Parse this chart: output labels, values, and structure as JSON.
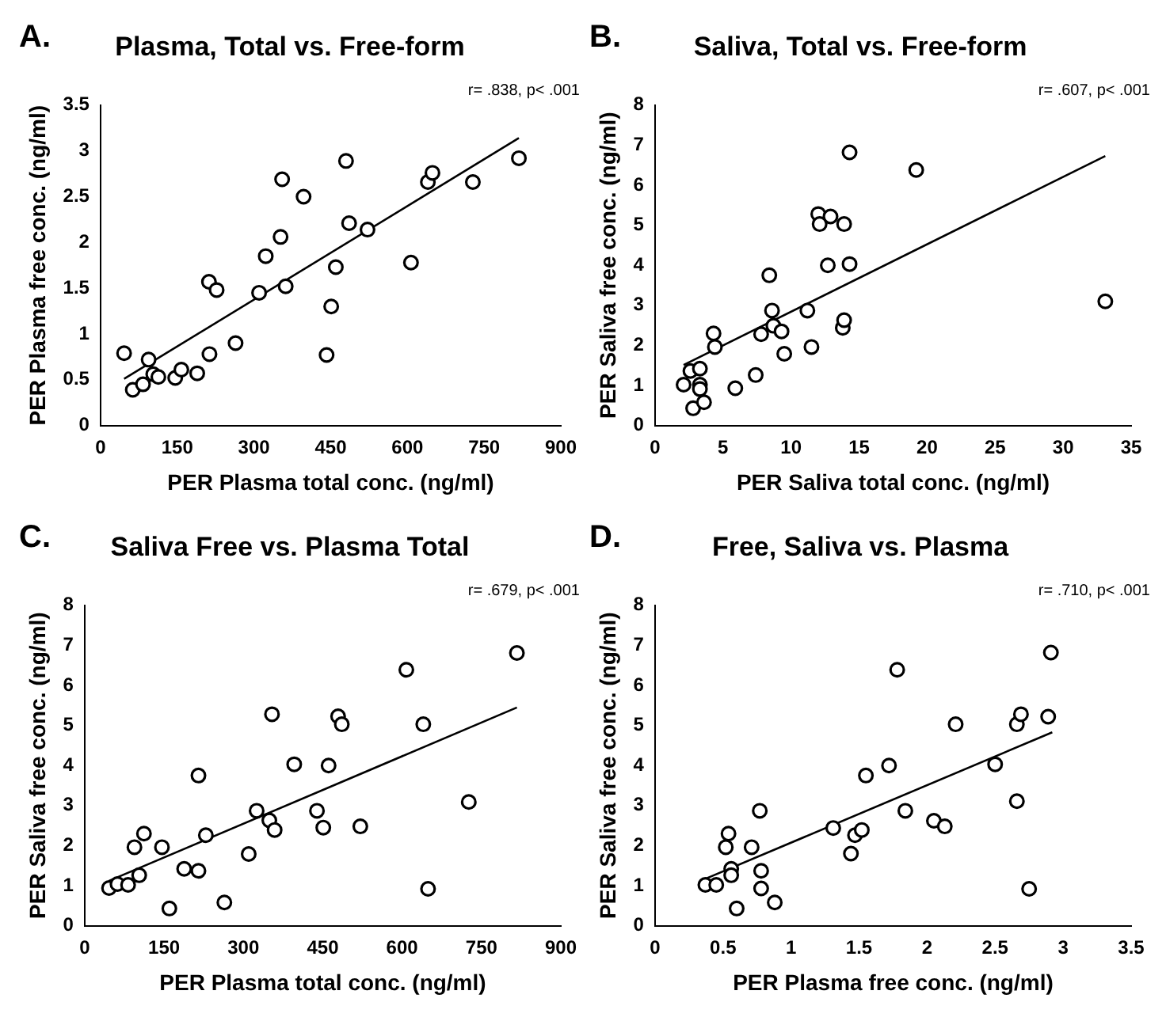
{
  "chart_data": [
    {
      "type": "scatter",
      "title": "Plasma, Total vs. Free-form",
      "xlabel": "PER Plasma total conc. (ng/ml)",
      "ylabel": "PER Plasma free conc. (ng/ml)",
      "annotations": [
        "A.",
        "r= .838, p< .001"
      ],
      "xlim": [
        0,
        900
      ],
      "xticks": [
        0,
        150,
        300,
        450,
        600,
        750,
        900
      ],
      "ylim": [
        0,
        3.5
      ],
      "yticks": [
        0,
        0.5,
        1,
        1.5,
        2,
        2.5,
        3,
        3.5
      ],
      "grid": false,
      "legend": false,
      "series": [
        {
          "type": "scatter",
          "marker": "circle",
          "color": "#000000",
          "x": [
            46,
            63,
            83,
            94,
            103,
            113,
            146,
            158,
            189,
            213,
            212,
            227,
            264,
            310,
            323,
            352,
            355,
            362,
            397,
            442,
            451,
            460,
            480,
            486,
            522,
            607,
            640,
            649,
            728,
            818
          ],
          "values": [
            0.79,
            0.39,
            0.45,
            0.72,
            0.56,
            0.53,
            0.52,
            0.61,
            0.57,
            0.78,
            1.57,
            1.48,
            0.9,
            1.45,
            1.85,
            2.06,
            2.69,
            1.52,
            2.5,
            0.77,
            1.3,
            1.73,
            2.89,
            2.21,
            2.14,
            1.78,
            2.66,
            2.76,
            2.66,
            2.92
          ]
        },
        {
          "type": "line",
          "marker": "none",
          "color": "#000000",
          "x": [
            46,
            818
          ],
          "values": [
            0.51,
            3.14
          ]
        }
      ]
    },
    {
      "type": "scatter",
      "title": "Saliva, Total vs. Free-form",
      "xlabel": "PER Saliva total conc. (ng/ml)",
      "ylabel": "PER Saliva free conc. (ng/ml)",
      "annotations": [
        "B.",
        "r= .607, p< .001"
      ],
      "xlim": [
        0,
        35
      ],
      "xticks": [
        0,
        5,
        10,
        15,
        20,
        25,
        30,
        35
      ],
      "ylim": [
        0,
        8
      ],
      "yticks": [
        0,
        1,
        2,
        3,
        4,
        5,
        6,
        7,
        8
      ],
      "grid": false,
      "legend": false,
      "series": [
        {
          "type": "scatter",
          "marker": "circle",
          "color": "#000000",
          "x": [
            2.1,
            2.8,
            2.6,
            3.3,
            3.3,
            3.3,
            3.6,
            4.3,
            4.4,
            5.9,
            7.4,
            7.8,
            8.4,
            8.6,
            8.7,
            9.3,
            9.5,
            11.2,
            11.5,
            12.0,
            12.1,
            12.9,
            12.7,
            13.8,
            13.9,
            13.9,
            14.3,
            14.3,
            19.2,
            33.1
          ],
          "values": [
            1.02,
            0.43,
            1.36,
            1.42,
            1.02,
            0.91,
            0.58,
            2.3,
            1.96,
            0.93,
            1.26,
            2.28,
            3.75,
            2.87,
            2.49,
            2.35,
            1.79,
            2.87,
            1.96,
            5.28,
            5.03,
            5.22,
            4.0,
            2.44,
            2.63,
            5.03,
            4.03,
            6.82,
            6.38,
            3.1
          ]
        },
        {
          "type": "line",
          "marker": "none",
          "color": "#000000",
          "x": [
            2.1,
            33.1
          ],
          "values": [
            1.51,
            6.73
          ]
        }
      ]
    },
    {
      "type": "scatter",
      "title": "Saliva Free vs. Plasma Total",
      "xlabel": "PER Plasma total conc. (ng/ml)",
      "ylabel": "PER Saliva free conc. (ng/ml)",
      "annotations": [
        "C.",
        "r= .679, p< .001"
      ],
      "xlim": [
        0,
        900
      ],
      "xticks": [
        0,
        150,
        300,
        450,
        600,
        750,
        900
      ],
      "ylim": [
        0,
        8
      ],
      "yticks": [
        0,
        1,
        2,
        3,
        4,
        5,
        6,
        7,
        8
      ],
      "grid": false,
      "legend": false,
      "series": [
        {
          "type": "scatter",
          "marker": "circle",
          "color": "#000000",
          "x": [
            46,
            62,
            82,
            103,
            94,
            112,
            146,
            160,
            188,
            215,
            215,
            229,
            264,
            310,
            325,
            349,
            359,
            354,
            396,
            439,
            451,
            461,
            479,
            486,
            521,
            608,
            640,
            649,
            726,
            817
          ],
          "values": [
            0.94,
            1.04,
            1.02,
            1.26,
            1.96,
            2.3,
            1.96,
            0.43,
            1.42,
            1.37,
            3.75,
            2.26,
            0.58,
            1.79,
            2.87,
            2.63,
            2.39,
            5.28,
            4.03,
            2.87,
            2.45,
            4.0,
            5.23,
            5.03,
            2.48,
            6.39,
            5.03,
            0.92,
            3.09,
            6.81
          ]
        },
        {
          "type": "line",
          "marker": "none",
          "color": "#000000",
          "x": [
            46,
            817
          ],
          "values": [
            1.12,
            5.45
          ]
        }
      ]
    },
    {
      "type": "scatter",
      "title": "Free, Saliva vs. Plasma",
      "xlabel": "PER Plasma free conc. (ng/ml)",
      "ylabel": "PER Saliva free conc. (ng/ml)",
      "annotations": [
        "D.",
        "r= .710, p< .001"
      ],
      "xlim": [
        0,
        3.5
      ],
      "xticks": [
        0,
        0.5,
        1,
        1.5,
        2,
        2.5,
        3,
        3.5
      ],
      "ylim": [
        0,
        8
      ],
      "yticks": [
        0,
        1,
        2,
        3,
        4,
        5,
        6,
        7,
        8
      ],
      "grid": false,
      "legend": false,
      "series": [
        {
          "type": "scatter",
          "marker": "circle",
          "color": "#000000",
          "x": [
            0.37,
            0.45,
            0.6,
            0.52,
            0.54,
            0.56,
            0.56,
            0.71,
            0.77,
            0.78,
            0.78,
            0.88,
            1.31,
            1.44,
            1.47,
            1.52,
            1.55,
            1.72,
            1.78,
            1.84,
            2.05,
            2.13,
            2.21,
            2.5,
            2.66,
            2.66,
            2.69,
            2.89,
            2.91,
            2.75
          ],
          "values": [
            1.02,
            1.02,
            0.43,
            1.96,
            2.3,
            1.42,
            1.26,
            1.96,
            2.87,
            1.37,
            0.93,
            0.58,
            2.44,
            1.8,
            2.26,
            2.39,
            3.75,
            4.0,
            6.39,
            2.87,
            2.62,
            2.48,
            5.03,
            4.03,
            3.11,
            5.03,
            5.28,
            5.22,
            6.82,
            0.92
          ]
        },
        {
          "type": "line",
          "marker": "none",
          "color": "#000000",
          "x": [
            0.37,
            2.92
          ],
          "values": [
            1.17,
            4.83
          ]
        }
      ]
    }
  ]
}
